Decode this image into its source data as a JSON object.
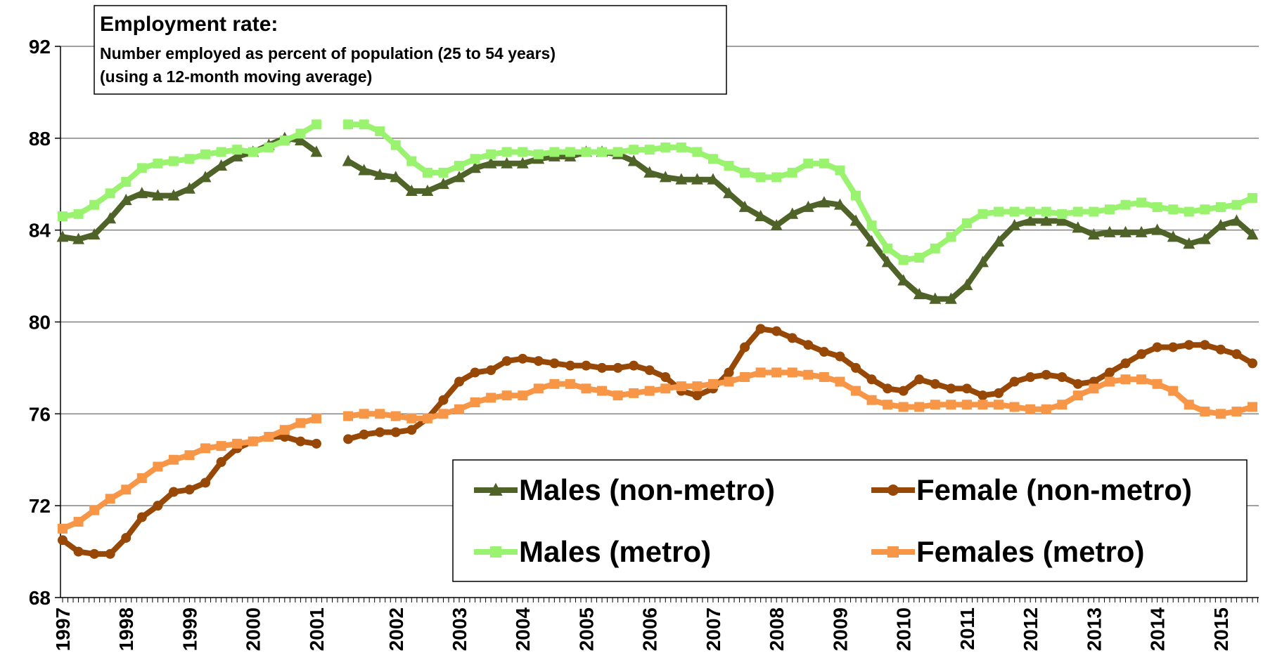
{
  "chart_data": {
    "type": "line",
    "title": "Employment rate:",
    "subtitle": [
      "Number employed as percent of population (25 to 54 years)",
      "(using a 12-month moving average)"
    ],
    "categories": [
      "1997",
      null,
      null,
      null,
      "1998",
      null,
      null,
      null,
      "1999",
      null,
      null,
      null,
      "2000",
      null,
      null,
      null,
      "2001",
      null,
      null,
      null,
      null,
      "2002",
      null,
      null,
      null,
      "2003",
      null,
      null,
      null,
      "2004",
      null,
      null,
      null,
      "2005",
      null,
      null,
      null,
      "2006",
      null,
      null,
      null,
      "2007",
      null,
      null,
      null,
      "2008",
      null,
      null,
      null,
      "2009",
      null,
      null,
      null,
      "2010",
      null,
      null,
      null,
      "2011",
      null,
      null,
      null,
      "2012",
      null,
      null,
      null,
      "2013",
      null,
      null,
      null,
      "2014",
      null,
      null,
      null,
      "2015",
      null,
      null
    ],
    "series": [
      {
        "name": "Males (non-metro)",
        "color": "#4f6228",
        "marker": "triangle",
        "values": [
          83.7,
          83.6,
          83.8,
          84.5,
          85.3,
          85.6,
          85.5,
          85.5,
          85.8,
          86.3,
          86.8,
          87.2,
          87.4,
          87.7,
          88.0,
          87.9,
          87.4,
          null,
          87.0,
          86.6,
          86.4,
          86.3,
          85.7,
          85.7,
          86.0,
          86.3,
          86.7,
          86.9,
          86.9,
          86.9,
          87.1,
          87.2,
          87.2,
          87.4,
          87.4,
          87.3,
          87.0,
          86.5,
          86.3,
          86.2,
          86.2,
          86.2,
          85.6,
          85.0,
          84.6,
          84.2,
          84.7,
          85.0,
          85.2,
          85.1,
          84.4,
          83.5,
          82.6,
          81.8,
          81.2,
          81.0,
          81.0,
          81.6,
          82.6,
          83.5,
          84.2,
          84.4,
          84.4,
          84.4,
          84.1,
          83.8,
          83.9,
          83.9,
          83.9,
          84.0,
          83.7,
          83.4,
          83.6,
          84.2,
          84.4,
          83.8
        ]
      },
      {
        "name": "Female (non-metro)",
        "color": "#974806",
        "marker": "circle",
        "values": [
          70.5,
          70.0,
          69.9,
          69.9,
          70.6,
          71.5,
          72.0,
          72.6,
          72.7,
          73.0,
          73.9,
          74.5,
          74.8,
          75.0,
          75.0,
          74.8,
          74.7,
          null,
          74.9,
          75.1,
          75.2,
          75.2,
          75.3,
          75.8,
          76.6,
          77.4,
          77.8,
          77.9,
          78.3,
          78.4,
          78.3,
          78.2,
          78.1,
          78.1,
          78.0,
          78.0,
          78.1,
          77.9,
          77.6,
          77.0,
          76.8,
          77.1,
          77.8,
          78.9,
          79.7,
          79.6,
          79.3,
          79.0,
          78.7,
          78.5,
          78.0,
          77.5,
          77.1,
          77.0,
          77.5,
          77.3,
          77.1,
          77.1,
          76.8,
          76.9,
          77.4,
          77.6,
          77.7,
          77.6,
          77.3,
          77.4,
          77.8,
          78.2,
          78.6,
          78.9,
          78.9,
          79.0,
          79.0,
          78.8,
          78.6,
          78.2
        ]
      },
      {
        "name": "Males (metro)",
        "color": "#99f36e",
        "marker": "square",
        "values": [
          84.6,
          84.7,
          85.1,
          85.6,
          86.1,
          86.7,
          86.9,
          87.0,
          87.1,
          87.3,
          87.4,
          87.5,
          87.4,
          87.6,
          87.9,
          88.2,
          88.6,
          null,
          88.6,
          88.6,
          88.3,
          87.7,
          87.0,
          86.5,
          86.5,
          86.8,
          87.1,
          87.3,
          87.4,
          87.4,
          87.3,
          87.4,
          87.4,
          87.4,
          87.4,
          87.4,
          87.5,
          87.5,
          87.6,
          87.6,
          87.4,
          87.1,
          86.8,
          86.5,
          86.3,
          86.3,
          86.5,
          86.9,
          86.9,
          86.6,
          85.5,
          84.2,
          83.2,
          82.7,
          82.8,
          83.2,
          83.7,
          84.3,
          84.7,
          84.8,
          84.8,
          84.8,
          84.8,
          84.7,
          84.8,
          84.8,
          84.9,
          85.1,
          85.2,
          85.0,
          84.9,
          84.8,
          84.9,
          85.0,
          85.1,
          85.4
        ]
      },
      {
        "name": "Females (metro)",
        "color": "#f79646",
        "marker": "square",
        "values": [
          71.0,
          71.3,
          71.8,
          72.3,
          72.7,
          73.2,
          73.7,
          74.0,
          74.2,
          74.5,
          74.6,
          74.7,
          74.8,
          75.0,
          75.3,
          75.6,
          75.8,
          null,
          75.9,
          76.0,
          76.0,
          75.9,
          75.8,
          75.8,
          76.0,
          76.2,
          76.5,
          76.7,
          76.8,
          76.8,
          77.1,
          77.3,
          77.3,
          77.1,
          77.0,
          76.8,
          76.9,
          77.0,
          77.1,
          77.2,
          77.2,
          77.3,
          77.4,
          77.6,
          77.8,
          77.8,
          77.8,
          77.7,
          77.6,
          77.4,
          77.0,
          76.6,
          76.4,
          76.3,
          76.3,
          76.4,
          76.4,
          76.4,
          76.4,
          76.4,
          76.3,
          76.2,
          76.2,
          76.4,
          76.8,
          77.1,
          77.4,
          77.5,
          77.5,
          77.3,
          77.0,
          76.4,
          76.1,
          76.0,
          76.1,
          76.3
        ]
      }
    ],
    "ylim": [
      68,
      92
    ],
    "yticks": [
      68,
      72,
      76,
      80,
      84,
      88,
      92
    ],
    "grid": true,
    "legend": "lower right"
  }
}
